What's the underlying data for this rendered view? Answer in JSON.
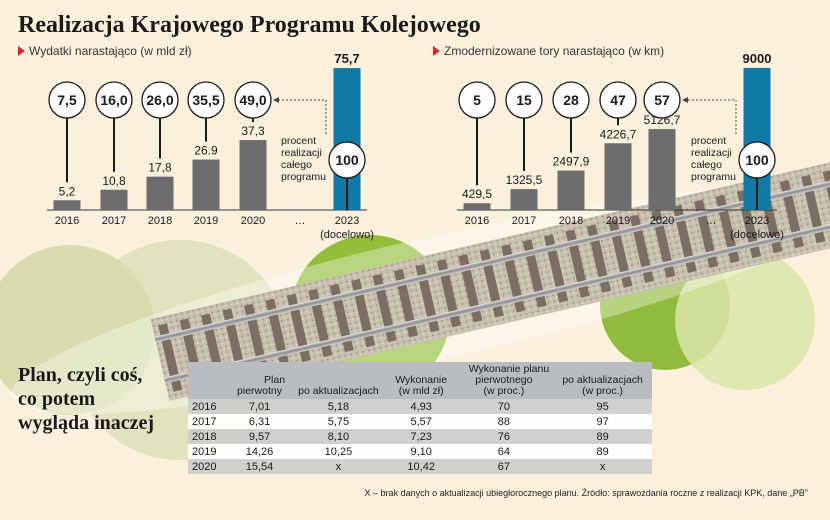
{
  "header": {
    "title": "Realizacja Krajowego Programu Kolejowego"
  },
  "chart_data": [
    {
      "type": "bar",
      "subtitle": "Wydatki narastająco (w mld zł)",
      "categories": [
        "2016",
        "2017",
        "2018",
        "2019",
        "2020",
        "…",
        "2023"
      ],
      "category_note": "(docelowo)",
      "values": [
        5.2,
        10.8,
        17.8,
        26.9,
        37.3,
        null,
        75.7
      ],
      "value_labels": [
        "5,2",
        "10,8",
        "17,8",
        "26.9",
        "37,3",
        "",
        "75,7"
      ],
      "percent_labels": [
        "7,5",
        "16,0",
        "26,0",
        "35,5",
        "49,0",
        "",
        "100"
      ],
      "annotation": [
        "procent",
        "realizacji",
        "całego",
        "programu"
      ],
      "ylim": [
        0,
        80
      ],
      "colors": {
        "bar": "#6d6d6d",
        "target": "#0f7aa5"
      }
    },
    {
      "type": "bar",
      "subtitle": "Zmodernizowane tory narastająco (w km)",
      "categories": [
        "2016",
        "2017",
        "2018",
        "2019",
        "2020",
        "…",
        "2023"
      ],
      "category_note": "(docelowo)",
      "values": [
        429.5,
        1325.5,
        2497.9,
        4226.7,
        5126.7,
        null,
        9000
      ],
      "value_labels": [
        "429,5",
        "1325,5",
        "2497,9",
        "4226,7",
        "5126,7",
        "",
        "9000"
      ],
      "percent_labels": [
        "5",
        "15",
        "28",
        "47",
        "57",
        "",
        "100"
      ],
      "annotation": [
        "procent",
        "realizacji",
        "całego",
        "programu"
      ],
      "ylim": [
        0,
        9500
      ],
      "colors": {
        "bar": "#6d6d6d",
        "target": "#0f7aa5"
      }
    }
  ],
  "plan": {
    "title_lines": [
      "Plan, czyli coś,",
      "co potem",
      "wygląda inaczej"
    ],
    "head": {
      "plan": "Plan",
      "pierwotny": "pierwotny",
      "po_akt": "po aktualizacjach",
      "wykonanie": "Wykonanie",
      "wykonanie_unit": "(w mld zł)",
      "wyk_planu": "Wykonanie planu",
      "pierwotnego": "pierwotnego",
      "po_akt2": "po aktualizacjach",
      "proc1": "(w proc.)",
      "proc2": "(w proc.)"
    },
    "rows": [
      {
        "year": "2016",
        "pierwotny": "7,01",
        "po_akt": "5,18",
        "wykonanie": "4,93",
        "pct_pierw": "70",
        "pct_akt": "95"
      },
      {
        "year": "2017",
        "pierwotny": "6,31",
        "po_akt": "5,75",
        "wykonanie": "5,57",
        "pct_pierw": "88",
        "pct_akt": "97"
      },
      {
        "year": "2018",
        "pierwotny": "9,57",
        "po_akt": "8,10",
        "wykonanie": "7,23",
        "pct_pierw": "76",
        "pct_akt": "89"
      },
      {
        "year": "2019",
        "pierwotny": "14,26",
        "po_akt": "10,25",
        "wykonanie": "9,10",
        "pct_pierw": "64",
        "pct_akt": "89"
      },
      {
        "year": "2020",
        "pierwotny": "15,54",
        "po_akt": "x",
        "wykonanie": "10,42",
        "pct_pierw": "67",
        "pct_akt": "x"
      }
    ]
  },
  "footnote": "X – brak danych o aktualizacji ubiegłorocznego planu. Źródło: sprawozdania roczne z realizacji KPK, dane „PB\""
}
